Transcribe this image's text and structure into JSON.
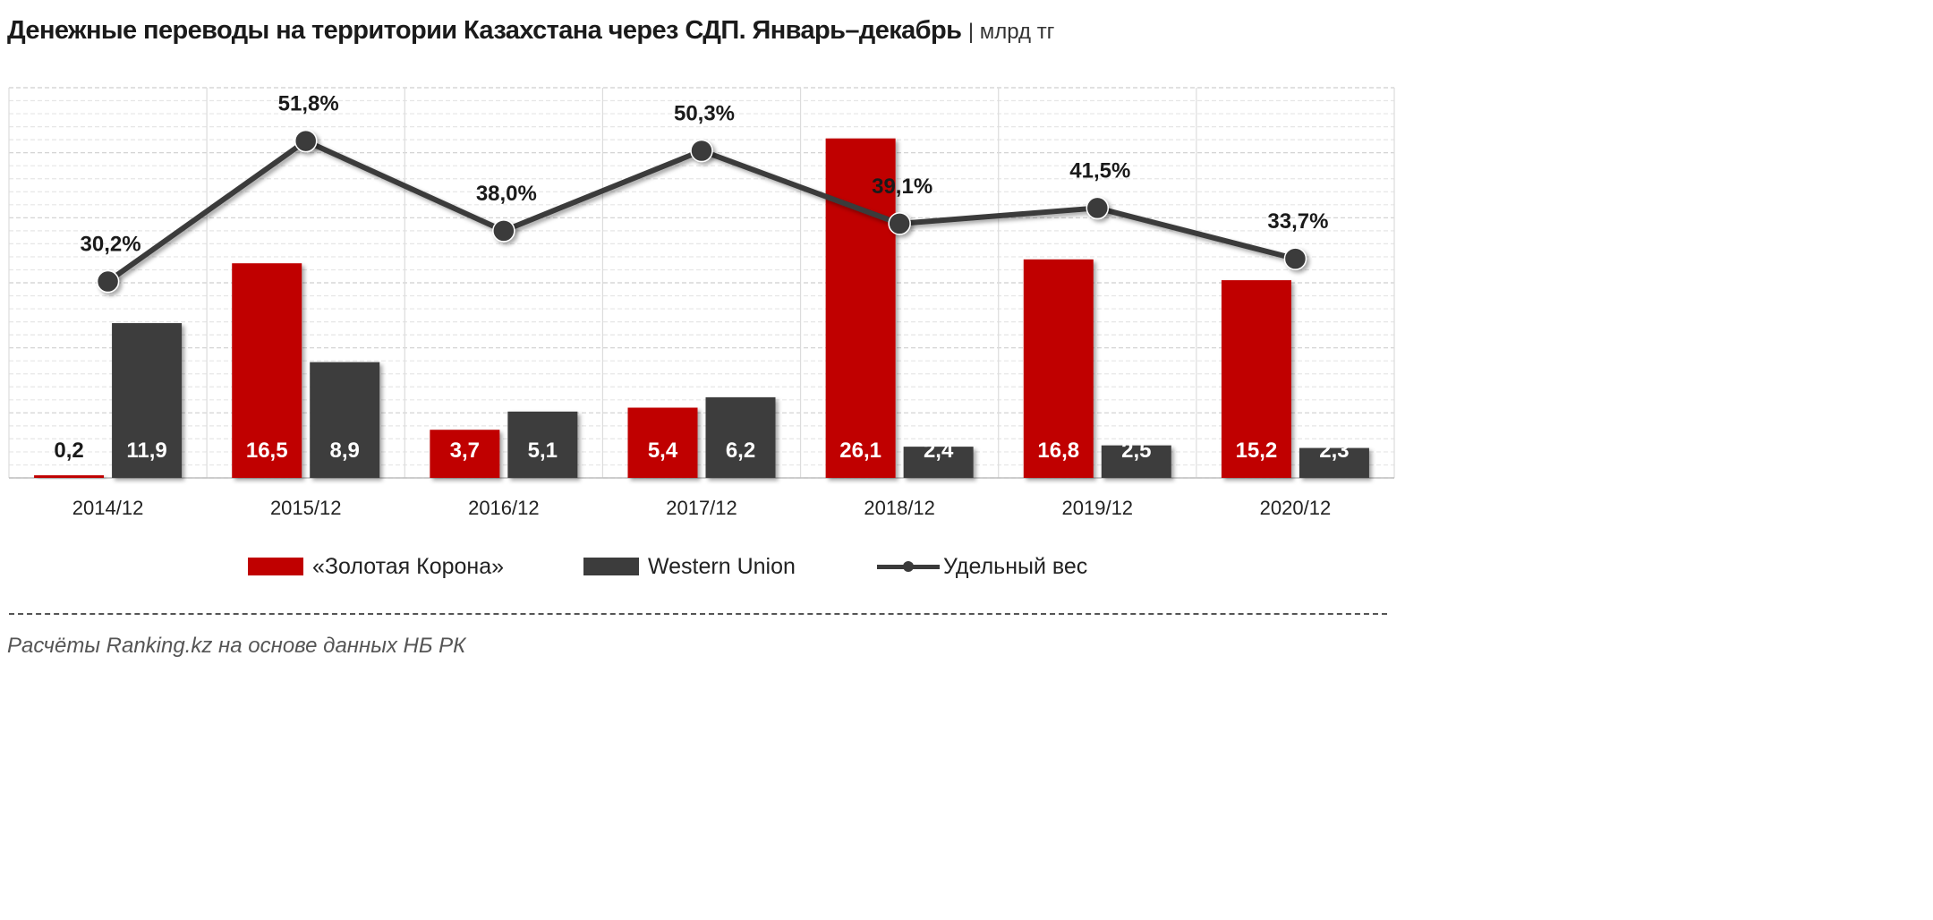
{
  "title": "Денежные переводы на территории Казахстана через СДП. Январь–декабрь",
  "unit": "| млрд тг",
  "source": "Расчёты Ranking.kz на основе данных НБ РК",
  "colors": {
    "zolotaya": "#c00000",
    "western": "#3c3c3c",
    "line": "#3a3a3a",
    "grid": "#d9d9d9"
  },
  "legend": {
    "zolotaya": "«Золотая Корона»",
    "western": "Western Union",
    "share": "Удельный вес"
  },
  "chart_data": {
    "type": "bar",
    "categories": [
      "2014/12",
      "2015/12",
      "2016/12",
      "2017/12",
      "2018/12",
      "2019/12",
      "2020/12"
    ],
    "series": [
      {
        "name": "«Золотая Корона»",
        "type": "bar",
        "values": [
          0.2,
          16.5,
          3.7,
          5.4,
          26.1,
          16.8,
          15.2
        ],
        "labels": [
          "0,2",
          "16,5",
          "3,7",
          "5,4",
          "26,1",
          "16,8",
          "15,2"
        ]
      },
      {
        "name": "Western Union",
        "type": "bar",
        "values": [
          11.9,
          8.9,
          5.1,
          6.2,
          2.4,
          2.5,
          2.3
        ],
        "labels": [
          "11,9",
          "8,9",
          "5,1",
          "6,2",
          "2,4",
          "2,5",
          "2,3"
        ]
      },
      {
        "name": "Удельный вес",
        "type": "line",
        "values": [
          30.2,
          51.8,
          38.0,
          50.3,
          39.1,
          41.5,
          33.7
        ],
        "labels": [
          "30,2%",
          "51,8%",
          "38,0%",
          "50,3%",
          "39,1%",
          "41,5%",
          "33,7%"
        ]
      }
    ],
    "ylim": [
      0,
      30
    ],
    "y2lim": [
      0,
      60
    ],
    "grid": true,
    "legend_position": "bottom"
  }
}
